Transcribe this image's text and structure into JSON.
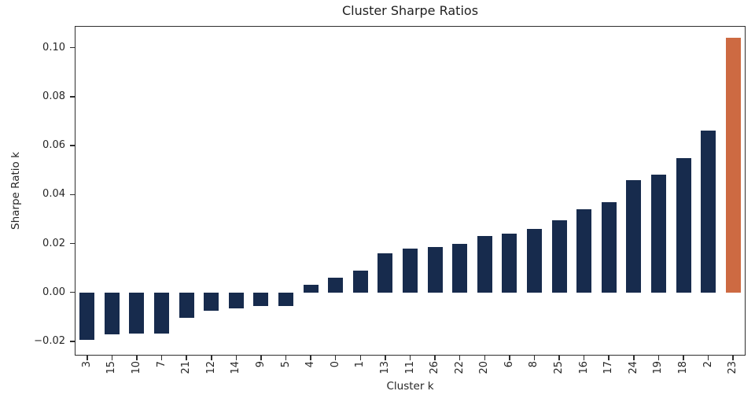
{
  "chart_data": {
    "type": "bar",
    "title": "Cluster Sharpe Ratios",
    "xlabel": "Cluster k",
    "ylabel": "Sharpe Ratio k",
    "categories": [
      "3",
      "15",
      "10",
      "7",
      "21",
      "12",
      "14",
      "9",
      "5",
      "4",
      "0",
      "1",
      "13",
      "11",
      "26",
      "22",
      "20",
      "6",
      "8",
      "25",
      "16",
      "17",
      "24",
      "19",
      "18",
      "2",
      "23"
    ],
    "values": [
      -0.0195,
      -0.0172,
      -0.0168,
      -0.0167,
      -0.0105,
      -0.0075,
      -0.0065,
      -0.0056,
      -0.0055,
      0.003,
      0.006,
      0.009,
      0.016,
      0.018,
      0.0185,
      0.02,
      0.023,
      0.024,
      0.026,
      0.0295,
      0.034,
      0.037,
      0.046,
      0.048,
      0.055,
      0.066,
      0.104
    ],
    "yticks": [
      0.1,
      0.08,
      0.06,
      0.04,
      0.02,
      0.0,
      -0.02
    ],
    "ylim": [
      -0.0258,
      0.1089
    ],
    "grid": false,
    "legend": "none",
    "bar_color": "#172b4d",
    "highlight_color": "#cd6a42",
    "highlight_category": "23"
  }
}
